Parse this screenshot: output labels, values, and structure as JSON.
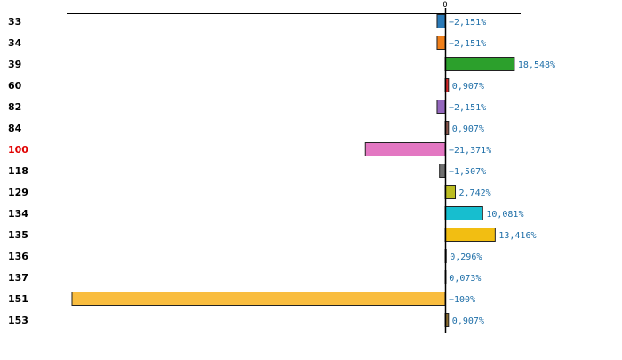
{
  "chart_data": {
    "type": "bar",
    "orientation": "horizontal",
    "categories": [
      "33",
      "34",
      "39",
      "60",
      "82",
      "84",
      "100",
      "118",
      "129",
      "134",
      "135",
      "136",
      "137",
      "151",
      "153"
    ],
    "values": [
      -2.151,
      -2.151,
      18.548,
      0.907,
      -2.151,
      0.907,
      -21.371,
      -1.507,
      2.742,
      10.081,
      13.416,
      0.296,
      0.073,
      -100,
      0.907
    ],
    "value_labels": [
      "−2,151%",
      "−2,151%",
      "18,548%",
      "0,907%",
      "−2,151%",
      "0,907%",
      "−21,371%",
      "−1,507%",
      "2,742%",
      "10,081%",
      "13,416%",
      "0,296%",
      "0,073%",
      "−100%",
      "0,907%"
    ],
    "bar_colors": [
      "#2a7ab8",
      "#f07f1a",
      "#2ca02c",
      "#d62728",
      "#9467bd",
      "#8c564b",
      "#e377c2",
      "#6f6f6f",
      "#bcbd22",
      "#17becf",
      "#f2be12",
      "#aec7e8",
      "#ffbb78",
      "#f9bd3f",
      "#8c6d31"
    ],
    "highlight_category": "100",
    "highlight_color": "#e00000",
    "value_label_color": "#1f6fa8",
    "xlim": [
      -100,
      20
    ],
    "ticks": [
      0
    ],
    "tick_labels": [
      "0"
    ],
    "title": "",
    "xlabel": "",
    "ylabel": "",
    "grid": false,
    "legend": "none"
  }
}
